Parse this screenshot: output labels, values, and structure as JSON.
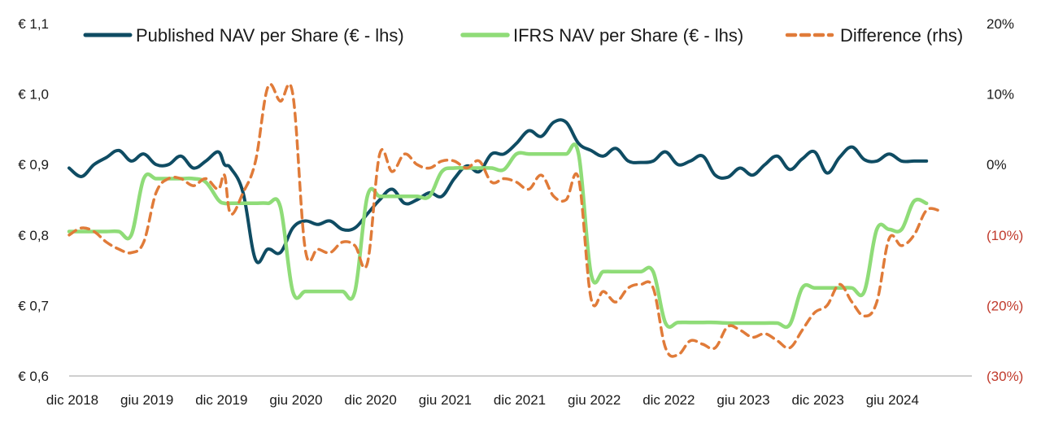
{
  "chart_data": {
    "type": "line",
    "legend_position": "top",
    "grid": false,
    "colors": {
      "published": "#0f4c63",
      "ifrs": "#8fdc78",
      "difference": "#e07b39",
      "negative_tick": "#c0392b",
      "axis": "#bfbfbf",
      "text": "#1a1a1a"
    },
    "y_left": {
      "ylim": [
        0.6,
        1.1
      ],
      "ticks": [
        {
          "value": 1.1,
          "label": "€ 1,1"
        },
        {
          "value": 1.0,
          "label": "€ 1,0"
        },
        {
          "value": 0.9,
          "label": "€ 0,9"
        },
        {
          "value": 0.8,
          "label": "€ 0,8"
        },
        {
          "value": 0.7,
          "label": "€ 0,7"
        },
        {
          "value": 0.6,
          "label": "€ 0,6"
        }
      ]
    },
    "y_right": {
      "ylim": [
        -30,
        20
      ],
      "ticks": [
        {
          "value": 20,
          "label": "20%",
          "negative": false
        },
        {
          "value": 10,
          "label": "10%",
          "negative": false
        },
        {
          "value": 0,
          "label": "0%",
          "negative": false
        },
        {
          "value": -10,
          "label": "(10%)",
          "negative": true
        },
        {
          "value": -20,
          "label": "(20%)",
          "negative": true
        },
        {
          "value": -30,
          "label": "(30%)",
          "negative": true
        }
      ]
    },
    "x_ticks": [
      {
        "date": "2018-12",
        "label": "dic 2018"
      },
      {
        "date": "2019-06",
        "label": "giu 2019"
      },
      {
        "date": "2019-12",
        "label": "dic 2019"
      },
      {
        "date": "2020-06",
        "label": "giu 2020"
      },
      {
        "date": "2020-12",
        "label": "dic 2020"
      },
      {
        "date": "2021-06",
        "label": "giu 2021"
      },
      {
        "date": "2021-12",
        "label": "dic 2021"
      },
      {
        "date": "2022-06",
        "label": "giu 2022"
      },
      {
        "date": "2022-12",
        "label": "dic 2022"
      },
      {
        "date": "2023-06",
        "label": "giu 2023"
      },
      {
        "date": "2023-12",
        "label": "dic 2023"
      },
      {
        "date": "2024-06",
        "label": "giu 2024"
      }
    ],
    "xlim": [
      "2018-12",
      "2024-12"
    ],
    "series": [
      {
        "name": "Published NAV per Share (€ - lhs)",
        "key": "published",
        "axis": "left",
        "points": [
          [
            "2018-12",
            0.895
          ],
          [
            "2019-01",
            0.883
          ],
          [
            "2019-02",
            0.9
          ],
          [
            "2019-03",
            0.91
          ],
          [
            "2019-04",
            0.92
          ],
          [
            "2019-05",
            0.905
          ],
          [
            "2019-06",
            0.915
          ],
          [
            "2019-07",
            0.9
          ],
          [
            "2019-08",
            0.9
          ],
          [
            "2019-09",
            0.912
          ],
          [
            "2019-10",
            0.895
          ],
          [
            "2019-11",
            0.905
          ],
          [
            "2019-12",
            0.918
          ],
          [
            "2019-13",
            0.9
          ],
          [
            "2020-01",
            0.895
          ],
          [
            "2020-02",
            0.86
          ],
          [
            "2020-03",
            0.765
          ],
          [
            "2020-04",
            0.78
          ],
          [
            "2020-05",
            0.775
          ],
          [
            "2020-06",
            0.81
          ],
          [
            "2020-07",
            0.82
          ],
          [
            "2020-08",
            0.815
          ],
          [
            "2020-09",
            0.82
          ],
          [
            "2020-10",
            0.808
          ],
          [
            "2020-11",
            0.81
          ],
          [
            "2020-12",
            0.83
          ],
          [
            "2021-01",
            0.85
          ],
          [
            "2021-02",
            0.865
          ],
          [
            "2021-03",
            0.845
          ],
          [
            "2021-04",
            0.85
          ],
          [
            "2021-05",
            0.86
          ],
          [
            "2021-06",
            0.855
          ],
          [
            "2021-07",
            0.88
          ],
          [
            "2021-08",
            0.898
          ],
          [
            "2021-09",
            0.89
          ],
          [
            "2021-10",
            0.915
          ],
          [
            "2021-11",
            0.915
          ],
          [
            "2021-12",
            0.93
          ],
          [
            "2022-01",
            0.948
          ],
          [
            "2022-02",
            0.94
          ],
          [
            "2022-03",
            0.96
          ],
          [
            "2022-04",
            0.96
          ],
          [
            "2022-05",
            0.93
          ],
          [
            "2022-06",
            0.92
          ],
          [
            "2022-07",
            0.912
          ],
          [
            "2022-08",
            0.923
          ],
          [
            "2022-09",
            0.905
          ],
          [
            "2022-10",
            0.903
          ],
          [
            "2022-11",
            0.905
          ],
          [
            "2022-12",
            0.918
          ],
          [
            "2023-01",
            0.9
          ],
          [
            "2023-02",
            0.905
          ],
          [
            "2023-03",
            0.912
          ],
          [
            "2023-04",
            0.885
          ],
          [
            "2023-05",
            0.882
          ],
          [
            "2023-06",
            0.895
          ],
          [
            "2023-07",
            0.885
          ],
          [
            "2023-08",
            0.9
          ],
          [
            "2023-09",
            0.912
          ],
          [
            "2023-10",
            0.893
          ],
          [
            "2023-11",
            0.908
          ],
          [
            "2023-12",
            0.918
          ],
          [
            "2024-01",
            0.888
          ],
          [
            "2024-02",
            0.91
          ],
          [
            "2024-03",
            0.925
          ],
          [
            "2024-04",
            0.907
          ],
          [
            "2024-05",
            0.905
          ],
          [
            "2024-06",
            0.915
          ],
          [
            "2024-07",
            0.905
          ],
          [
            "2024-08",
            0.905
          ],
          [
            "2024-09",
            0.905
          ]
        ]
      },
      {
        "name": "IFRS NAV per Share (€ - lhs)",
        "key": "ifrs",
        "axis": "left",
        "points": [
          [
            "2018-12",
            0.805
          ],
          [
            "2019-01",
            0.805
          ],
          [
            "2019-02",
            0.805
          ],
          [
            "2019-03",
            0.805
          ],
          [
            "2019-04",
            0.805
          ],
          [
            "2019-05",
            0.8
          ],
          [
            "2019-06",
            0.88
          ],
          [
            "2019-07",
            0.88
          ],
          [
            "2019-08",
            0.88
          ],
          [
            "2019-09",
            0.88
          ],
          [
            "2019-10",
            0.88
          ],
          [
            "2019-11",
            0.875
          ],
          [
            "2019-12",
            0.85
          ],
          [
            "2019-13",
            0.845
          ],
          [
            "2020-01",
            0.845
          ],
          [
            "2020-02",
            0.845
          ],
          [
            "2020-03",
            0.845
          ],
          [
            "2020-04",
            0.845
          ],
          [
            "2020-05",
            0.84
          ],
          [
            "2020-06",
            0.72
          ],
          [
            "2020-07",
            0.72
          ],
          [
            "2020-08",
            0.72
          ],
          [
            "2020-09",
            0.72
          ],
          [
            "2020-10",
            0.72
          ],
          [
            "2020-11",
            0.72
          ],
          [
            "2020-12",
            0.855
          ],
          [
            "2021-01",
            0.855
          ],
          [
            "2021-02",
            0.855
          ],
          [
            "2021-03",
            0.855
          ],
          [
            "2021-04",
            0.855
          ],
          [
            "2021-05",
            0.855
          ],
          [
            "2021-06",
            0.89
          ],
          [
            "2021-07",
            0.895
          ],
          [
            "2021-08",
            0.895
          ],
          [
            "2021-09",
            0.895
          ],
          [
            "2021-10",
            0.895
          ],
          [
            "2021-11",
            0.893
          ],
          [
            "2021-12",
            0.915
          ],
          [
            "2022-01",
            0.915
          ],
          [
            "2022-02",
            0.915
          ],
          [
            "2022-03",
            0.915
          ],
          [
            "2022-04",
            0.915
          ],
          [
            "2022-05",
            0.915
          ],
          [
            "2022-06",
            0.745
          ],
          [
            "2022-07",
            0.748
          ],
          [
            "2022-08",
            0.748
          ],
          [
            "2022-09",
            0.748
          ],
          [
            "2022-10",
            0.748
          ],
          [
            "2022-11",
            0.748
          ],
          [
            "2022-12",
            0.675
          ],
          [
            "2023-01",
            0.676
          ],
          [
            "2023-02",
            0.676
          ],
          [
            "2023-03",
            0.676
          ],
          [
            "2023-04",
            0.676
          ],
          [
            "2023-05",
            0.675
          ],
          [
            "2023-06",
            0.675
          ],
          [
            "2023-07",
            0.675
          ],
          [
            "2023-08",
            0.675
          ],
          [
            "2023-09",
            0.675
          ],
          [
            "2023-10",
            0.673
          ],
          [
            "2023-11",
            0.725
          ],
          [
            "2023-12",
            0.725
          ],
          [
            "2024-01",
            0.725
          ],
          [
            "2024-02",
            0.725
          ],
          [
            "2024-03",
            0.725
          ],
          [
            "2024-04",
            0.72
          ],
          [
            "2024-05",
            0.808
          ],
          [
            "2024-06",
            0.808
          ],
          [
            "2024-07",
            0.808
          ],
          [
            "2024-08",
            0.848
          ],
          [
            "2024-09",
            0.845
          ]
        ]
      },
      {
        "name": "Difference (rhs)",
        "key": "difference",
        "axis": "right",
        "points": [
          [
            "2018-12",
            -10
          ],
          [
            "2019-01",
            -9
          ],
          [
            "2019-02",
            -9.5
          ],
          [
            "2019-03",
            -11
          ],
          [
            "2019-04",
            -12
          ],
          [
            "2019-05",
            -12.5
          ],
          [
            "2019-06",
            -11
          ],
          [
            "2019-07",
            -4
          ],
          [
            "2019-08",
            -2
          ],
          [
            "2019-09",
            -2
          ],
          [
            "2019-10",
            -3
          ],
          [
            "2019-11",
            -2
          ],
          [
            "2019-12",
            -3.5
          ],
          [
            "2019-13",
            -1.5
          ],
          [
            "2020-01",
            -7
          ],
          [
            "2020-02",
            -4
          ],
          [
            "2020-03",
            0.5
          ],
          [
            "2020-04",
            11
          ],
          [
            "2020-05",
            9
          ],
          [
            "2020-06",
            10
          ],
          [
            "2020-07",
            -12
          ],
          [
            "2020-08",
            -12
          ],
          [
            "2020-09",
            -12.5
          ],
          [
            "2020-10",
            -11
          ],
          [
            "2020-11",
            -11.5
          ],
          [
            "2020-12",
            -14
          ],
          [
            "2021-01",
            1.5
          ],
          [
            "2021-02",
            -1
          ],
          [
            "2021-03",
            1.5
          ],
          [
            "2021-04",
            0
          ],
          [
            "2021-05",
            -0.5
          ],
          [
            "2021-06",
            0.5
          ],
          [
            "2021-07",
            0.5
          ],
          [
            "2021-08",
            -0.5
          ],
          [
            "2021-09",
            0.5
          ],
          [
            "2021-10",
            -2.5
          ],
          [
            "2021-11",
            -2
          ],
          [
            "2021-12",
            -2.5
          ],
          [
            "2022-01",
            -3.5
          ],
          [
            "2022-02",
            -1.5
          ],
          [
            "2022-03",
            -4.5
          ],
          [
            "2022-04",
            -5
          ],
          [
            "2022-05",
            -2
          ],
          [
            "2022-06",
            -19
          ],
          [
            "2022-07",
            -18
          ],
          [
            "2022-08",
            -19.5
          ],
          [
            "2022-09",
            -17.5
          ],
          [
            "2022-10",
            -17
          ],
          [
            "2022-11",
            -17.5
          ],
          [
            "2022-12",
            -26
          ],
          [
            "2023-01",
            -27
          ],
          [
            "2023-02",
            -25
          ],
          [
            "2023-03",
            -25.5
          ],
          [
            "2023-04",
            -26
          ],
          [
            "2023-05",
            -23
          ],
          [
            "2023-06",
            -23.5
          ],
          [
            "2023-07",
            -24.5
          ],
          [
            "2023-08",
            -24
          ],
          [
            "2023-09",
            -25
          ],
          [
            "2023-10",
            -26
          ],
          [
            "2023-11",
            -23.5
          ],
          [
            "2023-12",
            -21
          ],
          [
            "2024-01",
            -20
          ],
          [
            "2024-02",
            -17
          ],
          [
            "2024-03",
            -19.5
          ],
          [
            "2024-04",
            -21.5
          ],
          [
            "2024-05",
            -19.5
          ],
          [
            "2024-06",
            -10.5
          ],
          [
            "2024-07",
            -11.5
          ],
          [
            "2024-08",
            -10
          ],
          [
            "2024-09",
            -6.5
          ],
          [
            "2024-10",
            -6.5
          ]
        ]
      }
    ]
  }
}
